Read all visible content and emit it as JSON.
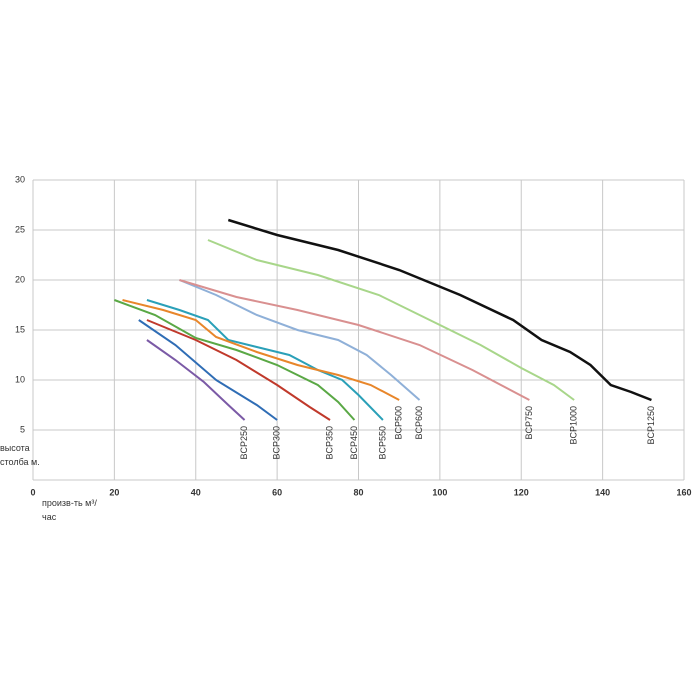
{
  "chart_data": {
    "type": "line",
    "x_label": "произв-ть м³/час",
    "y_label": "высота столба м.",
    "xlim": [
      0,
      160
    ],
    "xticks": [
      0,
      20,
      40,
      60,
      80,
      100,
      120,
      140,
      160
    ],
    "ylim": [
      0,
      30
    ],
    "yticks": [
      5,
      10,
      15,
      20,
      25,
      30
    ],
    "grid": true,
    "series": [
      {
        "name": "BCP250",
        "color": "#7b5aa6",
        "x": [
          28,
          35,
          42,
          48,
          52
        ],
        "values": [
          14,
          12,
          9.8,
          7.5,
          6
        ]
      },
      {
        "name": "BCP300",
        "color": "#2f6db5",
        "x": [
          26,
          35,
          45,
          55,
          60
        ],
        "values": [
          16,
          13.5,
          10,
          7.5,
          6
        ]
      },
      {
        "name": "BCP350",
        "color": "#c0392b",
        "x": [
          28,
          40,
          50,
          60,
          68,
          73
        ],
        "values": [
          16,
          14,
          12,
          9.5,
          7.3,
          6
        ]
      },
      {
        "name": "BCP450",
        "color": "#5aa845",
        "x": [
          20,
          30,
          40,
          50,
          60,
          70,
          75,
          79
        ],
        "values": [
          18,
          16.5,
          14.2,
          13,
          11.5,
          9.5,
          7.8,
          6
        ]
      },
      {
        "name": "BCP550",
        "color": "#2aa0b8",
        "x": [
          28,
          36,
          43,
          48,
          55,
          63,
          70,
          76,
          80,
          86
        ],
        "values": [
          18,
          17,
          16,
          14,
          13.3,
          12.5,
          11,
          10,
          8.5,
          6
        ]
      },
      {
        "name": "BCP500",
        "color": "#e8862a",
        "x": [
          22,
          32,
          40,
          45,
          55,
          65,
          75,
          83,
          90
        ],
        "values": [
          18,
          17,
          16,
          14.3,
          12.8,
          11.5,
          10.5,
          9.5,
          8
        ]
      },
      {
        "name": "BCP600",
        "color": "#8fb0d8",
        "x": [
          36,
          45,
          55,
          65,
          75,
          82,
          88,
          95
        ],
        "values": [
          20,
          18.5,
          16.5,
          15,
          14,
          12.5,
          10.5,
          8
        ]
      },
      {
        "name": "BCP750",
        "color": "#d99090",
        "x": [
          36,
          50,
          65,
          80,
          95,
          108,
          115,
          122
        ],
        "values": [
          20,
          18.3,
          17,
          15.5,
          13.5,
          11,
          9.5,
          8
        ]
      },
      {
        "name": "BCP1000",
        "color": "#a8d68a",
        "x": [
          43,
          55,
          70,
          85,
          95,
          110,
          120,
          128,
          133
        ],
        "values": [
          24,
          22,
          20.5,
          18.5,
          16.5,
          13.5,
          11.2,
          9.5,
          8
        ]
      },
      {
        "name": "BCP1250",
        "color": "#111111",
        "x": [
          48,
          60,
          75,
          90,
          105,
          118,
          125,
          132,
          137,
          142,
          147,
          152
        ],
        "values": [
          26,
          24.5,
          23,
          21,
          18.5,
          16,
          14,
          12.8,
          11.5,
          9.5,
          8.8,
          8
        ]
      }
    ]
  }
}
